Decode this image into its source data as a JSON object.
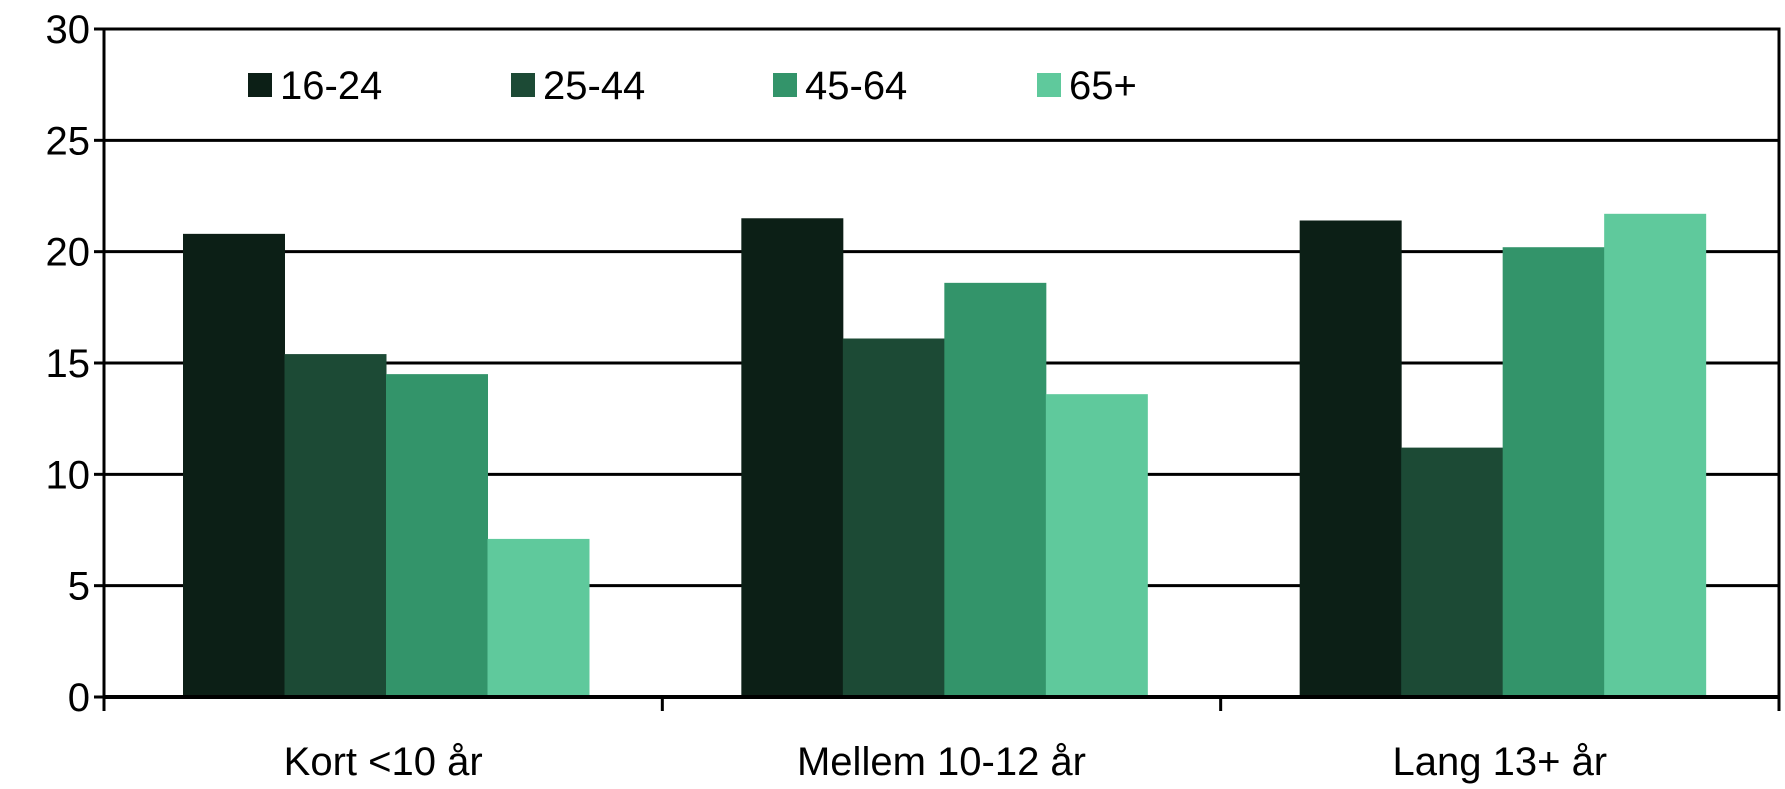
{
  "chart_data": {
    "type": "bar",
    "categories": [
      "Kort <10 år",
      "Mellem 10-12 år",
      "Lang 13+ år"
    ],
    "series": [
      {
        "name": "16-24",
        "color": "#0c1f16",
        "values": [
          20.8,
          21.5,
          21.4
        ]
      },
      {
        "name": "25-44",
        "color": "#1c4a35",
        "values": [
          15.4,
          16.1,
          11.2
        ]
      },
      {
        "name": "45-64",
        "color": "#33946a",
        "values": [
          14.5,
          18.6,
          20.2
        ]
      },
      {
        "name": "65+",
        "color": "#5fc99c",
        "values": [
          7.1,
          13.6,
          21.7
        ]
      }
    ],
    "ylim": [
      0,
      30
    ],
    "yticks": [
      0,
      5,
      10,
      15,
      20,
      25,
      30
    ],
    "grid": true,
    "legend_position": "top-left",
    "title": "",
    "xlabel": "",
    "ylabel": ""
  }
}
